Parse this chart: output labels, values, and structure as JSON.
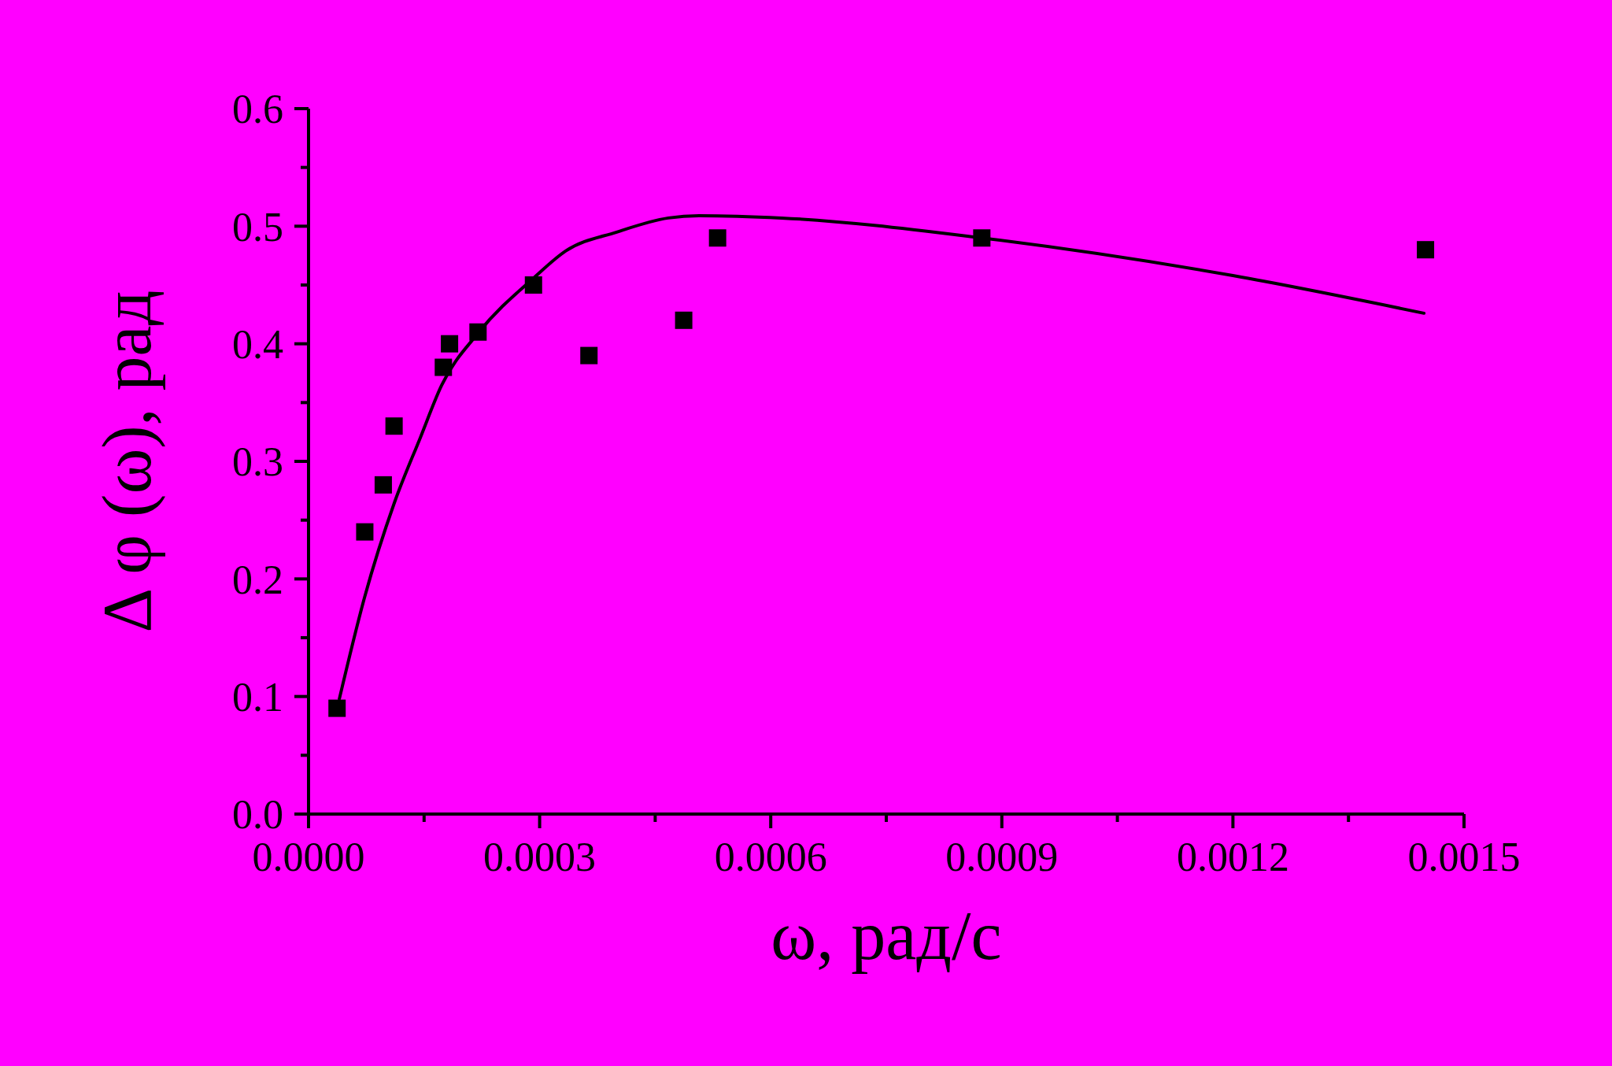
{
  "chart_data": {
    "type": "scatter",
    "xlabel": "ω, рад/с",
    "ylabel": "Δ φ (ω), рад",
    "xlim": [
      0,
      0.0015
    ],
    "ylim": [
      0,
      0.6
    ],
    "xticks": [
      {
        "value": 0,
        "label": "0.0000"
      },
      {
        "value": 0.00015,
        "label": null
      },
      {
        "value": 0.0003,
        "label": "0.0003"
      },
      {
        "value": 0.00045,
        "label": null
      },
      {
        "value": 0.0006,
        "label": "0.0006"
      },
      {
        "value": 0.00075,
        "label": null
      },
      {
        "value": 0.0009,
        "label": "0.0009"
      },
      {
        "value": 0.00105,
        "label": null
      },
      {
        "value": 0.0012,
        "label": "0.0012"
      },
      {
        "value": 0.00135,
        "label": null
      },
      {
        "value": 0.0015,
        "label": "0.0015"
      }
    ],
    "yticks": [
      {
        "value": 0,
        "label": "0.0"
      },
      {
        "value": 0.05,
        "label": null
      },
      {
        "value": 0.1,
        "label": "0.1"
      },
      {
        "value": 0.15,
        "label": null
      },
      {
        "value": 0.2,
        "label": "0.2"
      },
      {
        "value": 0.25,
        "label": null
      },
      {
        "value": 0.3,
        "label": "0.3"
      },
      {
        "value": 0.35,
        "label": null
      },
      {
        "value": 0.4,
        "label": "0.4"
      },
      {
        "value": 0.45,
        "label": null
      },
      {
        "value": 0.5,
        "label": "0.5"
      },
      {
        "value": 0.55,
        "label": null
      },
      {
        "value": 0.6,
        "label": "0.6"
      }
    ],
    "grid": false,
    "series": [
      {
        "marker": "square",
        "color": "#000000",
        "x": [
          3.7e-05,
          7.3e-05,
          9.7e-05,
          0.000111,
          0.000175,
          0.000183,
          0.00022,
          0.000292,
          0.000364,
          0.000487,
          0.000531,
          0.000874,
          0.00145
        ],
        "values": [
          0.09,
          0.24,
          0.28,
          0.33,
          0.38,
          0.4,
          0.41,
          0.45,
          0.39,
          0.42,
          0.49,
          0.49,
          0.48
        ]
      },
      {
        "type": "line",
        "line_style": "solid",
        "color": "#000000",
        "x": [
          4e-05,
          7.3e-05,
          0.000111,
          0.000145,
          0.000173,
          0.00022,
          0.000294,
          0.000334,
          0.0004,
          0.000467,
          0.000507,
          0.000614,
          0.000874,
          0.0012,
          0.001448
        ],
        "values": [
          0.098,
          0.185,
          0.264,
          0.32,
          0.365,
          0.409,
          0.457,
          0.479,
          0.495,
          0.507,
          0.509,
          0.507,
          0.49,
          0.458,
          0.426
        ]
      }
    ]
  }
}
